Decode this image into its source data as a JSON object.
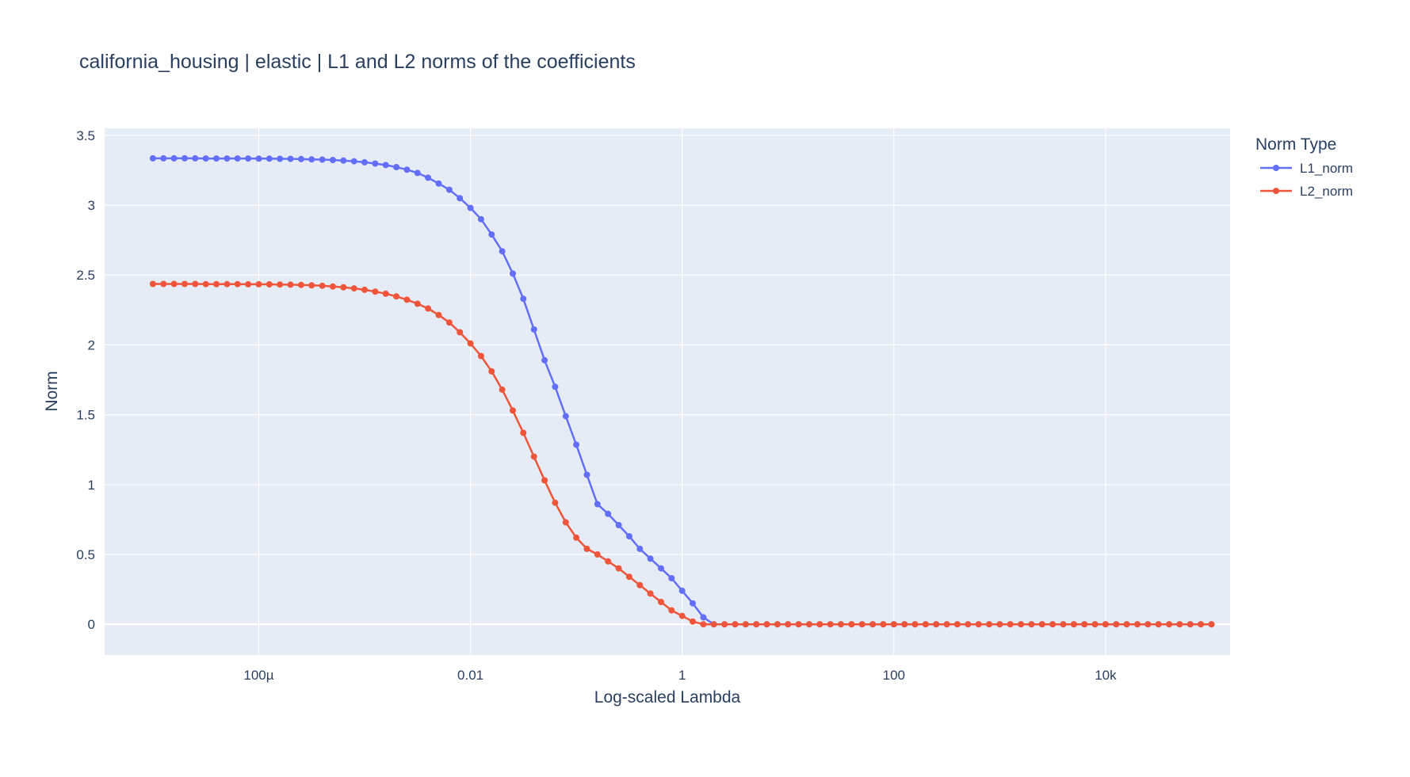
{
  "chart_data": {
    "type": "line",
    "title": "california_housing | elastic | L1 and L2 norms of the coefficients",
    "xlabel": "Log-scaled Lambda",
    "ylabel": "Norm",
    "x_scale": "log",
    "x_tick_labels": [
      "100µ",
      "0.01",
      "1",
      "100",
      "10k"
    ],
    "x_tick_values": [
      0.0001,
      0.01,
      1,
      100,
      10000
    ],
    "y_tick_labels": [
      "0",
      "0.5",
      "1",
      "1.5",
      "2",
      "2.5",
      "3",
      "3.5"
    ],
    "y_tick_values": [
      0,
      0.5,
      1,
      1.5,
      2,
      2.5,
      3,
      3.5
    ],
    "xlim": [
      3.5e-06,
      150000
    ],
    "ylim": [
      -0.22,
      3.55
    ],
    "grid": true,
    "legend_title": "Norm Type",
    "legend_placement": "top-right",
    "x": [
      1e-05,
      1.259e-05,
      1.585e-05,
      1.995e-05,
      2.512e-05,
      3.162e-05,
      3.981e-05,
      5.012e-05,
      6.31e-05,
      7.943e-05,
      0.0001,
      0.0001259,
      0.0001585,
      0.0001995,
      0.0002512,
      0.0003162,
      0.0003981,
      0.0005012,
      0.000631,
      0.0007943,
      0.001,
      0.001259,
      0.001585,
      0.001995,
      0.002512,
      0.003162,
      0.003981,
      0.005012,
      0.00631,
      0.007943,
      0.01,
      0.01259,
      0.01585,
      0.01995,
      0.02512,
      0.03162,
      0.03981,
      0.05012,
      0.0631,
      0.07943,
      0.1,
      0.1259,
      0.1585,
      0.1995,
      0.2512,
      0.3162,
      0.3981,
      0.5012,
      0.631,
      0.7943,
      1.0,
      1.259,
      1.585,
      1.995,
      2.512,
      3.162,
      3.981,
      5.012,
      6.31,
      7.943,
      10,
      12.59,
      15.85,
      19.95,
      25.12,
      31.62,
      39.81,
      50.12,
      63.1,
      79.43,
      100,
      125.9,
      158.5,
      199.5,
      251.2,
      316.2,
      398.1,
      501.2,
      631.0,
      794.3,
      1000,
      1259,
      1585,
      1995,
      2512,
      3162,
      3981,
      5012,
      6310,
      7943,
      10000,
      12590,
      15850,
      19950,
      25120,
      31620,
      39810,
      50120,
      63100,
      79430,
      100000
    ],
    "series": [
      {
        "name": "L1_norm",
        "color": "#636efa",
        "values": [
          3.335,
          3.335,
          3.335,
          3.335,
          3.335,
          3.334,
          3.334,
          3.334,
          3.334,
          3.334,
          3.333,
          3.333,
          3.332,
          3.331,
          3.33,
          3.328,
          3.326,
          3.323,
          3.319,
          3.314,
          3.307,
          3.298,
          3.287,
          3.272,
          3.254,
          3.23,
          3.196,
          3.155,
          3.11,
          3.05,
          2.98,
          2.9,
          2.79,
          2.67,
          2.51,
          2.33,
          2.11,
          1.89,
          1.7,
          1.49,
          1.285,
          1.07,
          0.86,
          0.79,
          0.71,
          0.63,
          0.54,
          0.47,
          0.4,
          0.33,
          0.24,
          0.15,
          0.05,
          0,
          0,
          0,
          0,
          0,
          0,
          0,
          0,
          0,
          0,
          0,
          0,
          0,
          0,
          0,
          0,
          0,
          0,
          0,
          0,
          0,
          0,
          0,
          0,
          0,
          0,
          0,
          0,
          0,
          0,
          0,
          0,
          0,
          0,
          0,
          0,
          0,
          0,
          0,
          0,
          0,
          0,
          0,
          0,
          0,
          0,
          0,
          0
        ]
      },
      {
        "name": "L2_norm",
        "color": "#ef553b",
        "values": [
          2.436,
          2.436,
          2.436,
          2.436,
          2.436,
          2.435,
          2.435,
          2.435,
          2.435,
          2.434,
          2.434,
          2.433,
          2.432,
          2.431,
          2.429,
          2.426,
          2.423,
          2.418,
          2.412,
          2.404,
          2.394,
          2.381,
          2.366,
          2.347,
          2.323,
          2.294,
          2.26,
          2.214,
          2.16,
          2.09,
          2.01,
          1.92,
          1.81,
          1.68,
          1.53,
          1.37,
          1.2,
          1.03,
          0.87,
          0.73,
          0.62,
          0.54,
          0.5,
          0.45,
          0.4,
          0.34,
          0.28,
          0.22,
          0.16,
          0.1,
          0.06,
          0.02,
          0,
          0,
          0,
          0,
          0,
          0,
          0,
          0,
          0,
          0,
          0,
          0,
          0,
          0,
          0,
          0,
          0,
          0,
          0,
          0,
          0,
          0,
          0,
          0,
          0,
          0,
          0,
          0,
          0,
          0,
          0,
          0,
          0,
          0,
          0,
          0,
          0,
          0,
          0,
          0,
          0,
          0,
          0,
          0,
          0,
          0,
          0,
          0,
          0
        ]
      }
    ]
  }
}
